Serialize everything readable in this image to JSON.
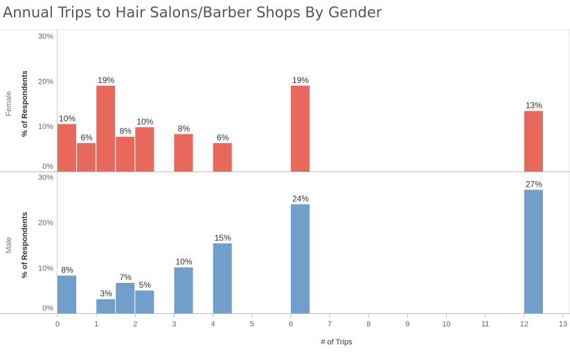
{
  "chart_data": {
    "type": "bar",
    "title": "Annual Trips to Hair Salons/Barber Shops By Gender",
    "xlabel": "# of Trips",
    "ylabel": "% of Respondents",
    "xlim": [
      0,
      13
    ],
    "x_ticks": [
      "0",
      "1",
      "2",
      "3",
      "4",
      "5",
      "6",
      "7",
      "8",
      "9",
      "10",
      "11",
      "12",
      "13"
    ],
    "ylim": [
      0,
      30
    ],
    "y_ticks": [
      "0%",
      "10%",
      "20%",
      "30%"
    ],
    "bin_width": 0.5,
    "panels": [
      {
        "name": "Female",
        "color": "#e8695c",
        "bars": [
          {
            "x": 0,
            "value": 10.5,
            "label": "10%"
          },
          {
            "x": 0.5,
            "value": 6.3,
            "label": "6%"
          },
          {
            "x": 1,
            "value": 19.0,
            "label": "19%"
          },
          {
            "x": 1.5,
            "value": 7.7,
            "label": "8%"
          },
          {
            "x": 2,
            "value": 9.8,
            "label": "10%"
          },
          {
            "x": 3,
            "value": 8.3,
            "label": "8%"
          },
          {
            "x": 4,
            "value": 6.3,
            "label": "6%"
          },
          {
            "x": 6,
            "value": 19.0,
            "label": "19%"
          },
          {
            "x": 12,
            "value": 13.4,
            "label": "13%"
          }
        ]
      },
      {
        "name": "Male",
        "color": "#729ecb",
        "bars": [
          {
            "x": 0,
            "value": 8.3,
            "label": "8%"
          },
          {
            "x": 1,
            "value": 3.1,
            "label": "3%"
          },
          {
            "x": 1.5,
            "value": 6.7,
            "label": "7%"
          },
          {
            "x": 2,
            "value": 5.0,
            "label": "5%"
          },
          {
            "x": 3,
            "value": 10.1,
            "label": "10%"
          },
          {
            "x": 4,
            "value": 15.4,
            "label": "15%"
          },
          {
            "x": 6,
            "value": 24.0,
            "label": "24%"
          },
          {
            "x": 12,
            "value": 27.2,
            "label": "27%"
          }
        ]
      }
    ]
  }
}
